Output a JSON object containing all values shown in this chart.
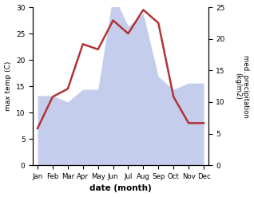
{
  "months": [
    "Jan",
    "Feb",
    "Mar",
    "Apr",
    "May",
    "Jun",
    "Jul",
    "Aug",
    "Sep",
    "Oct",
    "Nov",
    "Dec"
  ],
  "temperature": [
    7,
    13,
    14.5,
    23,
    22,
    27.5,
    25,
    29.5,
    27,
    13,
    8,
    8
  ],
  "precipitation": [
    11,
    11,
    10,
    12,
    12,
    27,
    22,
    24,
    14,
    12,
    13,
    13
  ],
  "temp_color": "#b03535",
  "precip_fill_color": "#c5cded",
  "precip_line_color": "#c5cded",
  "ylabel_left": "max temp (C)",
  "ylabel_right": "med. precipitation (kg/m2)",
  "xlabel": "date (month)",
  "ylim_left": [
    0,
    30
  ],
  "ylim_right": [
    0,
    25
  ],
  "background_color": "#ffffff",
  "temp_linewidth": 1.8
}
